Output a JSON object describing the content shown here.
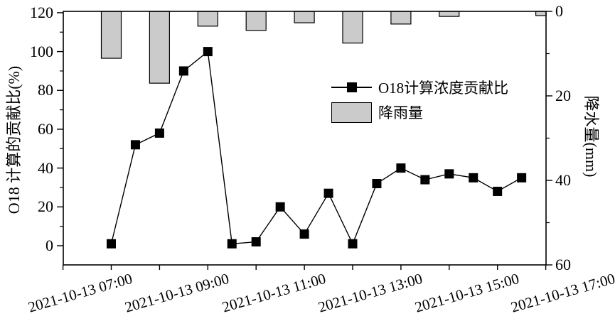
{
  "colors": {
    "background": "#ffffff",
    "axis": "#000000",
    "text": "#000000",
    "bar_fill": "#cbcbcb",
    "line": "#000000"
  },
  "chart_data": {
    "type": "composite",
    "title": "",
    "x_axis": {
      "tick_labels": [
        "2021-10-13 07:00",
        "2021-10-13 09:00",
        "2021-10-13 11:00",
        "2021-10-13 13:00",
        "2021-10-13 15:00",
        "2021-10-13 17:00"
      ],
      "label_hours": [
        7,
        9,
        11,
        13,
        15,
        17
      ],
      "minor_tick_hours": [
        6,
        7,
        8,
        9,
        10,
        11,
        12,
        13,
        14,
        15,
        16
      ],
      "range_hours": [
        6,
        16
      ],
      "label_rotation_deg": -16
    },
    "left_axis": {
      "title": "O18 计算的贡献比(%)",
      "unit": "%",
      "tick_values": [
        0,
        20,
        40,
        60,
        80,
        100,
        120
      ],
      "minor_tick_values": [
        10,
        30,
        50,
        70,
        90,
        110
      ],
      "range": [
        -10,
        120
      ]
    },
    "right_axis": {
      "title": "降水量(mm)",
      "unit": "mm",
      "tick_values": [
        0,
        20,
        40,
        60
      ],
      "minor_tick_values": [
        10,
        30,
        50
      ],
      "range": [
        0,
        60
      ],
      "inverted": true
    },
    "series": [
      {
        "name": "O18计算浓度贡献比",
        "type": "line",
        "axis": "left",
        "marker": "filled-square",
        "color": "#000000",
        "points": [
          {
            "hour": 7.0,
            "value": 1
          },
          {
            "hour": 7.5,
            "value": 52
          },
          {
            "hour": 8.0,
            "value": 58
          },
          {
            "hour": 8.5,
            "value": 90
          },
          {
            "hour": 9.0,
            "value": 100
          },
          {
            "hour": 9.5,
            "value": 1
          },
          {
            "hour": 10.0,
            "value": 2
          },
          {
            "hour": 10.5,
            "value": 20
          },
          {
            "hour": 11.0,
            "value": 6
          },
          {
            "hour": 11.5,
            "value": 27
          },
          {
            "hour": 12.0,
            "value": 1
          },
          {
            "hour": 12.5,
            "value": 32
          },
          {
            "hour": 13.0,
            "value": 40
          },
          {
            "hour": 13.5,
            "value": 34
          },
          {
            "hour": 14.0,
            "value": 37
          },
          {
            "hour": 14.5,
            "value": 35
          },
          {
            "hour": 15.0,
            "value": 28
          },
          {
            "hour": 15.5,
            "value": 35
          }
        ]
      },
      {
        "name": "降雨量",
        "type": "bar",
        "axis": "right",
        "color": "#cbcbcb",
        "border_color": "#000000",
        "points": [
          {
            "hour": 7,
            "value": 11.1
          },
          {
            "hour": 8,
            "value": 17.0
          },
          {
            "hour": 9,
            "value": 3.5
          },
          {
            "hour": 10,
            "value": 4.5
          },
          {
            "hour": 11,
            "value": 2.7
          },
          {
            "hour": 12,
            "value": 7.5
          },
          {
            "hour": 13,
            "value": 3.0
          },
          {
            "hour": 14,
            "value": 1.2
          },
          {
            "hour": 16,
            "value": 1.0
          }
        ]
      }
    ],
    "legend": {
      "position": "center"
    }
  }
}
